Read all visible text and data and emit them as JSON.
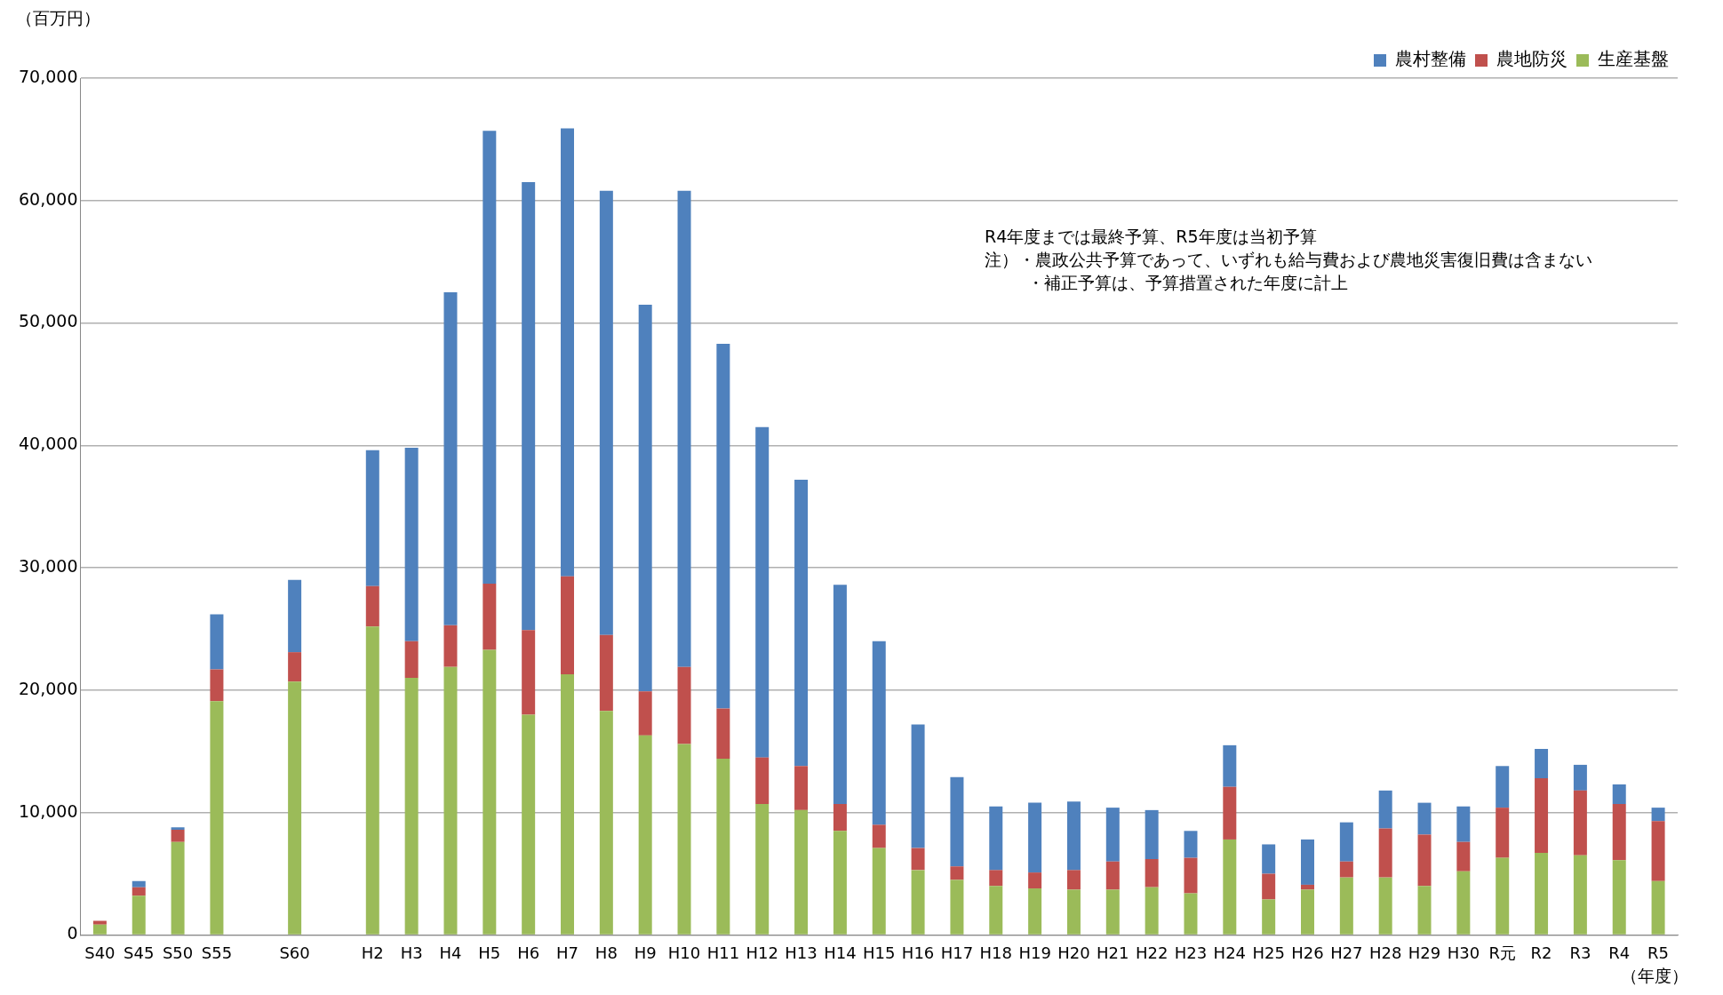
{
  "chart_data": {
    "type": "bar",
    "stacked": true,
    "ylabel": "（百万円）",
    "xlabel": "（年度）",
    "categories": [
      "S40",
      "S45",
      "S50",
      "S55",
      null,
      "S60",
      null,
      "H2",
      "H3",
      "H4",
      "H5",
      "H6",
      "H7",
      "H8",
      "H9",
      "H10",
      "H11",
      "H12",
      "H13",
      "H14",
      "H15",
      "H16",
      "H17",
      "H18",
      "H19",
      "H20",
      "H21",
      "H22",
      "H23",
      "H24",
      "H25",
      "H26",
      "H27",
      "H28",
      "H29",
      "H30",
      "R元",
      "R2",
      "R3",
      "R4",
      "R5"
    ],
    "series": [
      {
        "name": "生産基盤",
        "color": "#9bbb59",
        "values": [
          850,
          3200,
          7600,
          19100,
          null,
          20700,
          null,
          25200,
          21000,
          21900,
          23300,
          18000,
          21300,
          18300,
          16300,
          15600,
          14400,
          10700,
          10200,
          8500,
          7100,
          5300,
          4500,
          4000,
          3800,
          3700,
          3700,
          3900,
          3400,
          7800,
          2900,
          3700,
          4700,
          4700,
          4000,
          5200,
          6300,
          6700,
          6500,
          6100,
          4400
        ]
      },
      {
        "name": "農地防災",
        "color": "#c0504d",
        "values": [
          300,
          700,
          1000,
          2600,
          null,
          2400,
          null,
          3300,
          3000,
          3400,
          5400,
          6900,
          8000,
          6200,
          3600,
          6300,
          4100,
          3800,
          3600,
          2200,
          1900,
          1800,
          1100,
          1300,
          1300,
          1600,
          2300,
          2300,
          2900,
          4300,
          2100,
          400,
          1300,
          4000,
          4200,
          2400,
          4100,
          6100,
          5300,
          4600,
          4900
        ]
      },
      {
        "name": "農村整備",
        "color": "#4f81bd",
        "values": [
          null,
          500,
          200,
          4500,
          null,
          5900,
          null,
          11100,
          15800,
          27200,
          37000,
          36600,
          36600,
          36300,
          31600,
          38900,
          29800,
          27000,
          23400,
          17900,
          15000,
          10100,
          7300,
          5200,
          5700,
          5600,
          4400,
          4000,
          2200,
          3400,
          2400,
          3700,
          3200,
          3100,
          2600,
          2900,
          3400,
          2400,
          2100,
          1600,
          1100
        ]
      }
    ],
    "ylim": [
      0,
      70000
    ],
    "yticks": [
      {
        "value": 0,
        "label": "0"
      },
      {
        "value": 10000,
        "label": "10,000"
      },
      {
        "value": 20000,
        "label": "20,000"
      },
      {
        "value": 30000,
        "label": "30,000"
      },
      {
        "value": 40000,
        "label": "40,000"
      },
      {
        "value": 50000,
        "label": "50,000"
      },
      {
        "value": 60000,
        "label": "60,000"
      },
      {
        "value": 70000,
        "label": "70,000"
      }
    ],
    "grid": "y",
    "legend": "top right",
    "annotations": [
      "R4年度までは最終予算、R5年度は当初予算",
      "注）・農政公共予算であって、いずれも給与費および農地災害復旧費は含まない",
      "・補正予算は、予算措置された年度に計上"
    ]
  }
}
